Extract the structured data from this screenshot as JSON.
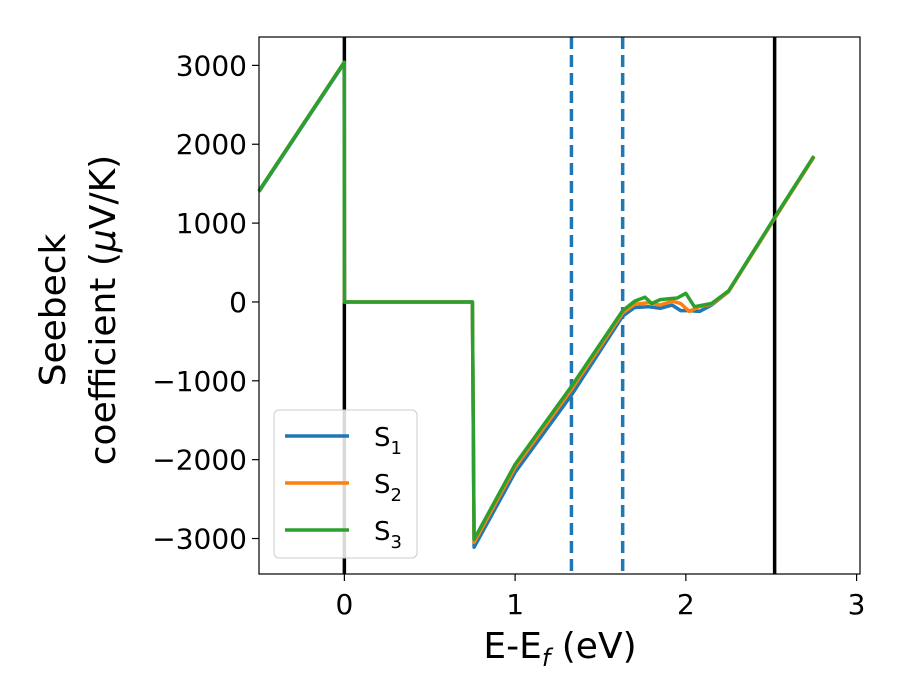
{
  "chart_data": {
    "type": "line",
    "xlabel": "E-E",
    "xlabel_sub": "f",
    "xlabel_unit": " (eV)",
    "ylabel_line1": "Seebeck",
    "ylabel_line2": "coefficient  (",
    "ylabel_mu": "μ",
    "ylabel_rest": "V/K)",
    "xlim": [
      -0.5,
      3.02
    ],
    "ylim": [
      -3450,
      3360
    ],
    "xticks": [
      0,
      1,
      2,
      3
    ],
    "yticks": [
      3000,
      2000,
      1000,
      0,
      -1000,
      -2000,
      -3000
    ],
    "grid": false,
    "legend_position": "lower-left",
    "vertical_lines": [
      {
        "x": 0.0,
        "style": "solid",
        "color": "#000000"
      },
      {
        "x": 2.52,
        "style": "solid",
        "color": "#000000"
      },
      {
        "x": 1.33,
        "style": "dashed",
        "color": "#1f77b4"
      },
      {
        "x": 1.63,
        "style": "dashed",
        "color": "#1f77b4"
      }
    ],
    "series": [
      {
        "name": "S",
        "sub": "1",
        "color": "#1f77b4",
        "x": [
          -0.5,
          -0.001,
          0.0,
          0.75,
          0.76,
          1.0,
          1.33,
          1.63,
          1.7,
          1.78,
          1.85,
          1.92,
          1.97,
          2.02,
          2.08,
          2.15,
          2.25,
          2.52,
          2.75
        ],
        "y": [
          1400,
          3030,
          0,
          0,
          -3110,
          -2160,
          -1180,
          -180,
          -70,
          -60,
          -80,
          -40,
          -110,
          -110,
          -120,
          -40,
          130,
          1060,
          1840
        ]
      },
      {
        "name": "S",
        "sub": "2",
        "color": "#ff7f0e",
        "x": [
          -0.5,
          -0.001,
          0.0,
          0.75,
          0.76,
          1.0,
          1.33,
          1.63,
          1.7,
          1.78,
          1.85,
          1.92,
          1.97,
          2.02,
          2.08,
          2.15,
          2.25,
          2.52,
          2.75
        ],
        "y": [
          1410,
          3040,
          0,
          0,
          -3050,
          -2100,
          -1110,
          -140,
          -30,
          -10,
          -40,
          10,
          -20,
          -120,
          -60,
          -30,
          130,
          1060,
          1840
        ]
      },
      {
        "name": "S",
        "sub": "3",
        "color": "#2ca02c",
        "x": [
          -0.5,
          -0.001,
          0.0,
          0.75,
          0.76,
          1.0,
          1.33,
          1.63,
          1.7,
          1.76,
          1.8,
          1.85,
          1.9,
          1.95,
          2.0,
          2.05,
          2.1,
          2.15,
          2.25,
          2.52,
          2.75
        ],
        "y": [
          1410,
          3040,
          0,
          0,
          -3010,
          -2060,
          -1070,
          -110,
          10,
          60,
          -20,
          30,
          40,
          50,
          110,
          -60,
          -40,
          -20,
          140,
          1070,
          1850
        ]
      }
    ]
  }
}
